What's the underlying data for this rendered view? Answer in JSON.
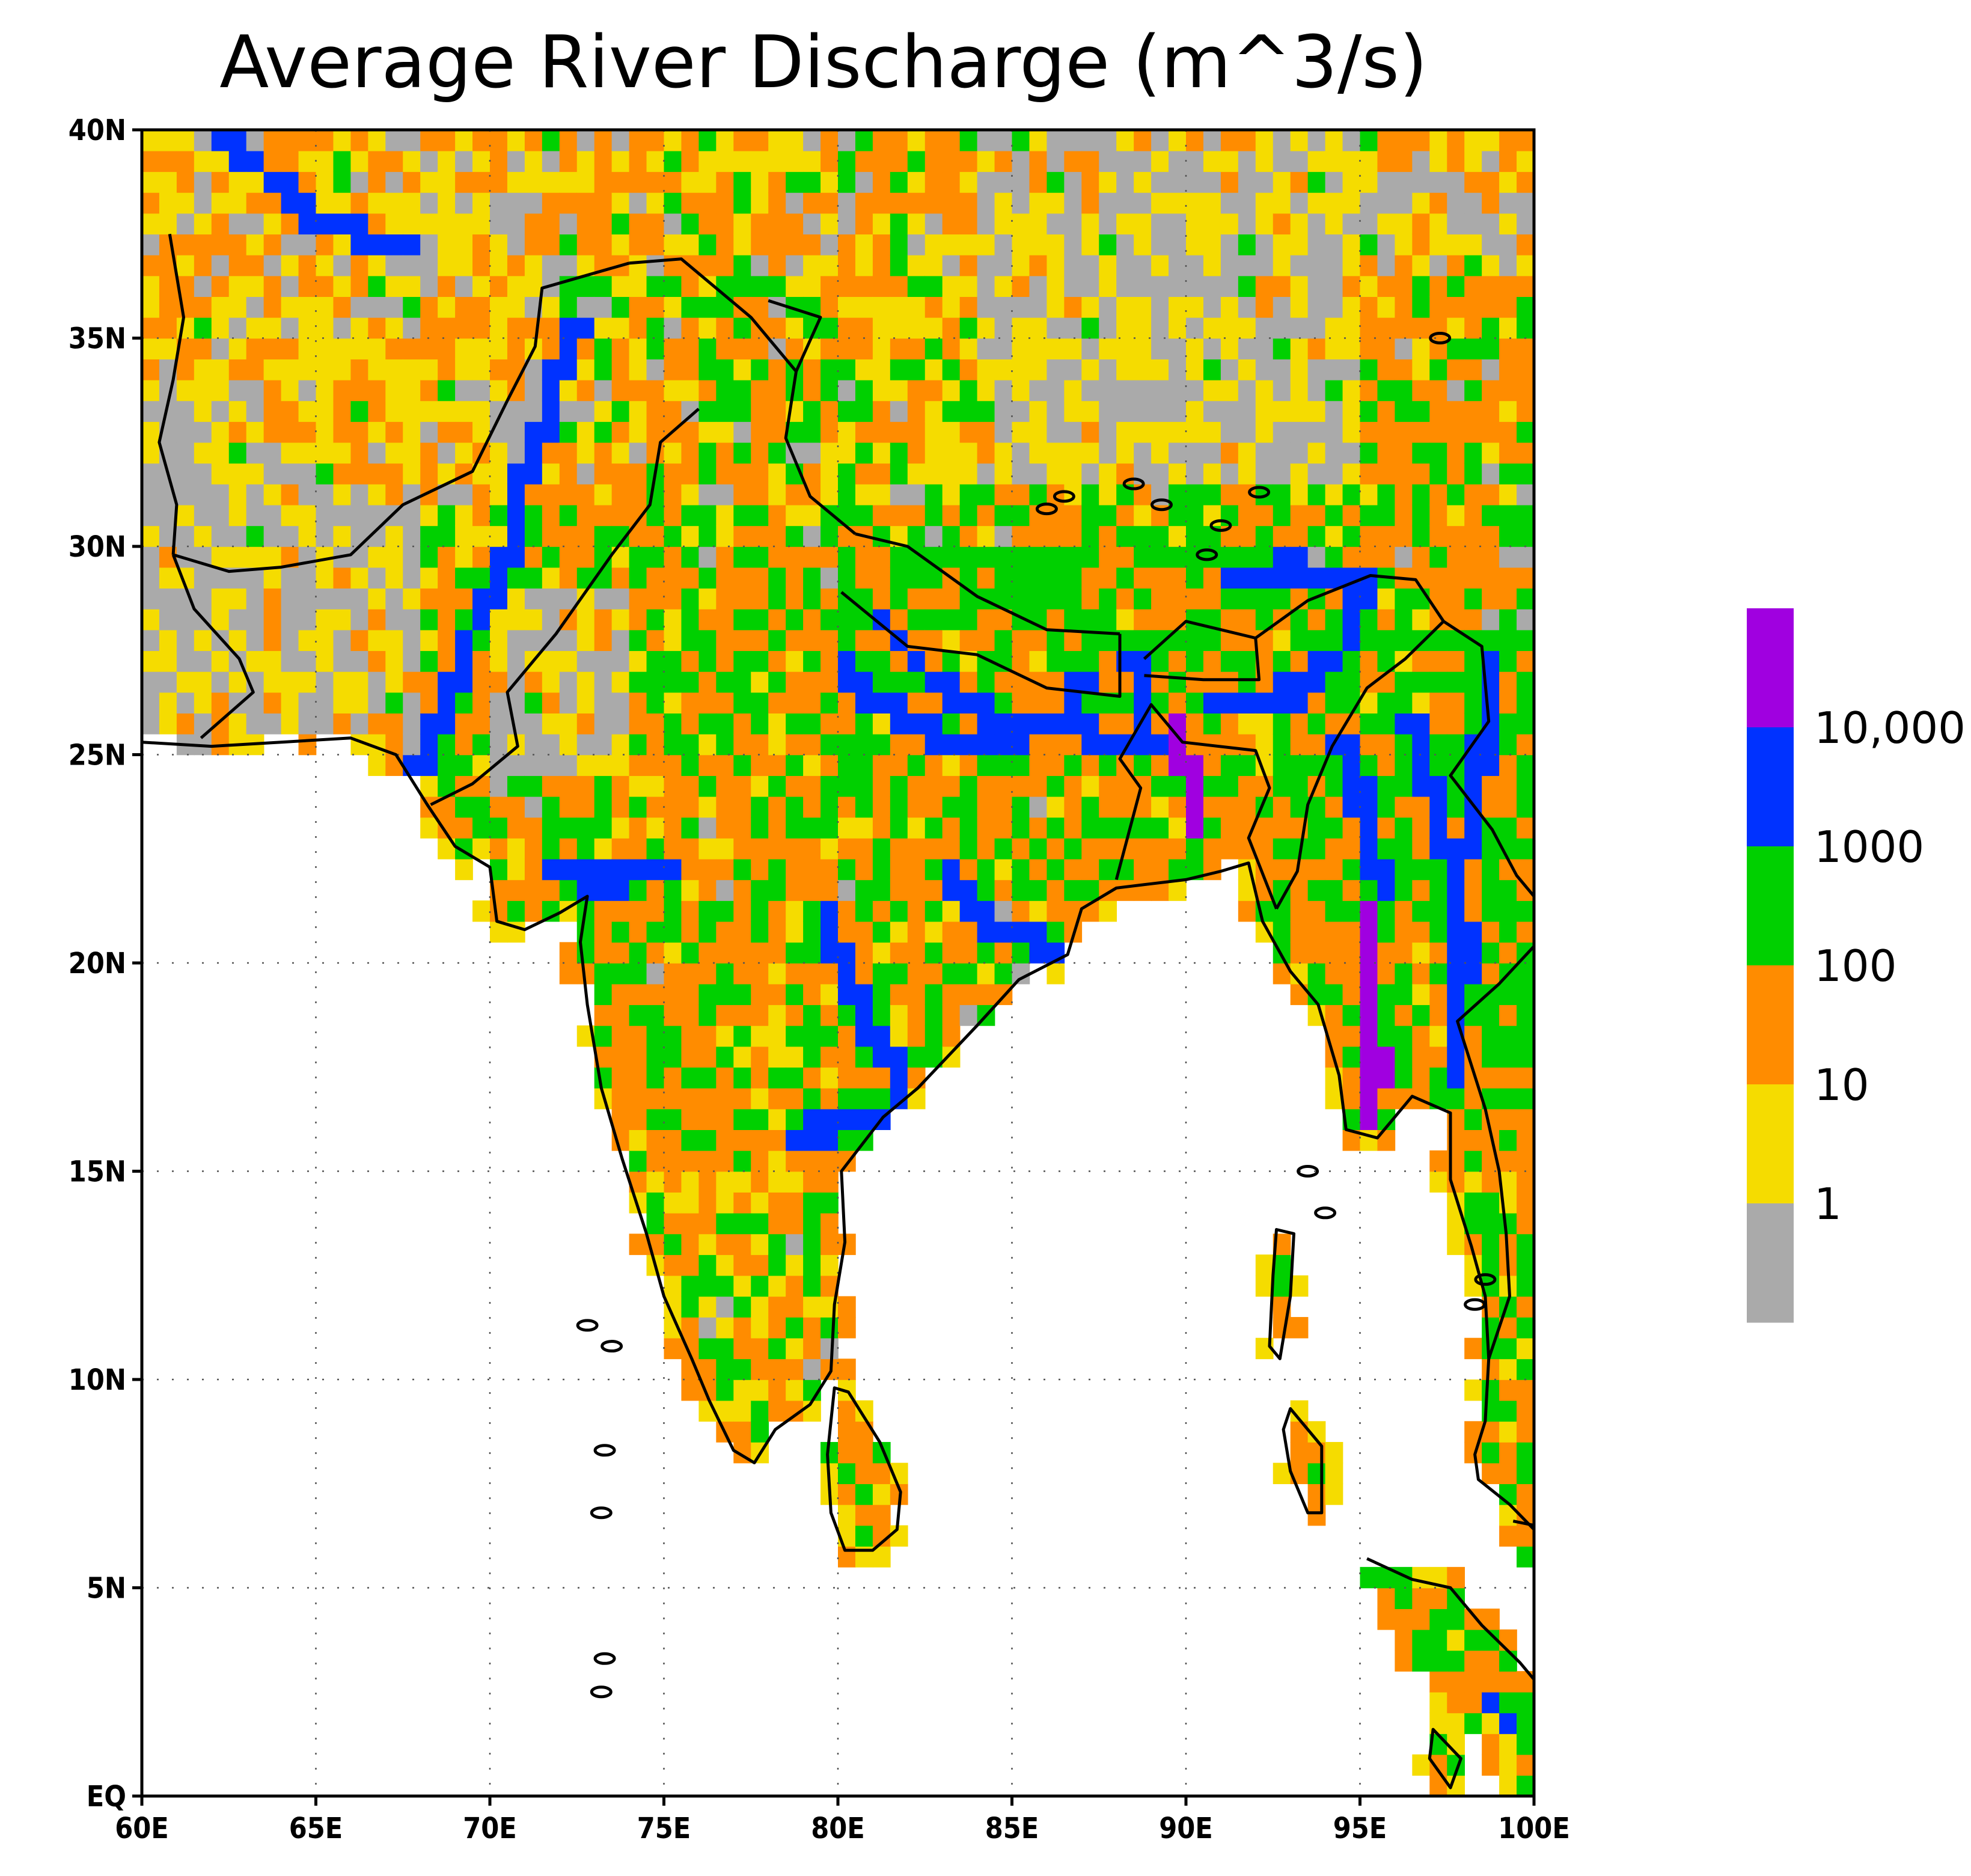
{
  "title": "Average River Discharge (m^3/s)",
  "map": {
    "lon_range": [
      60,
      100
    ],
    "lat_range": [
      0,
      40
    ],
    "lon_ticks": [
      "60E",
      "65E",
      "70E",
      "75E",
      "80E",
      "85E",
      "90E",
      "95E",
      "100E"
    ],
    "lat_ticks": [
      "EQ",
      "5N",
      "10N",
      "15N",
      "20N",
      "25N",
      "30N",
      "35N",
      "40N"
    ],
    "gridlines": "dotted",
    "colors": {
      "lt1": "#aaaaaa",
      "1-10": "#f5dc00",
      "10-100": "#ff8c00",
      "100-1000": "#00d000",
      "1000-10000": "#0032ff",
      "gt10000": "#a000e0",
      "ocean": "#ffffff"
    }
  },
  "legend": {
    "labels": [
      "10,000",
      "1000",
      "100",
      "10",
      "1"
    ],
    "colors": [
      "#a000e0",
      "#0032ff",
      "#00d000",
      "#ff8c00",
      "#f5dc00",
      "#aaaaaa"
    ]
  }
}
